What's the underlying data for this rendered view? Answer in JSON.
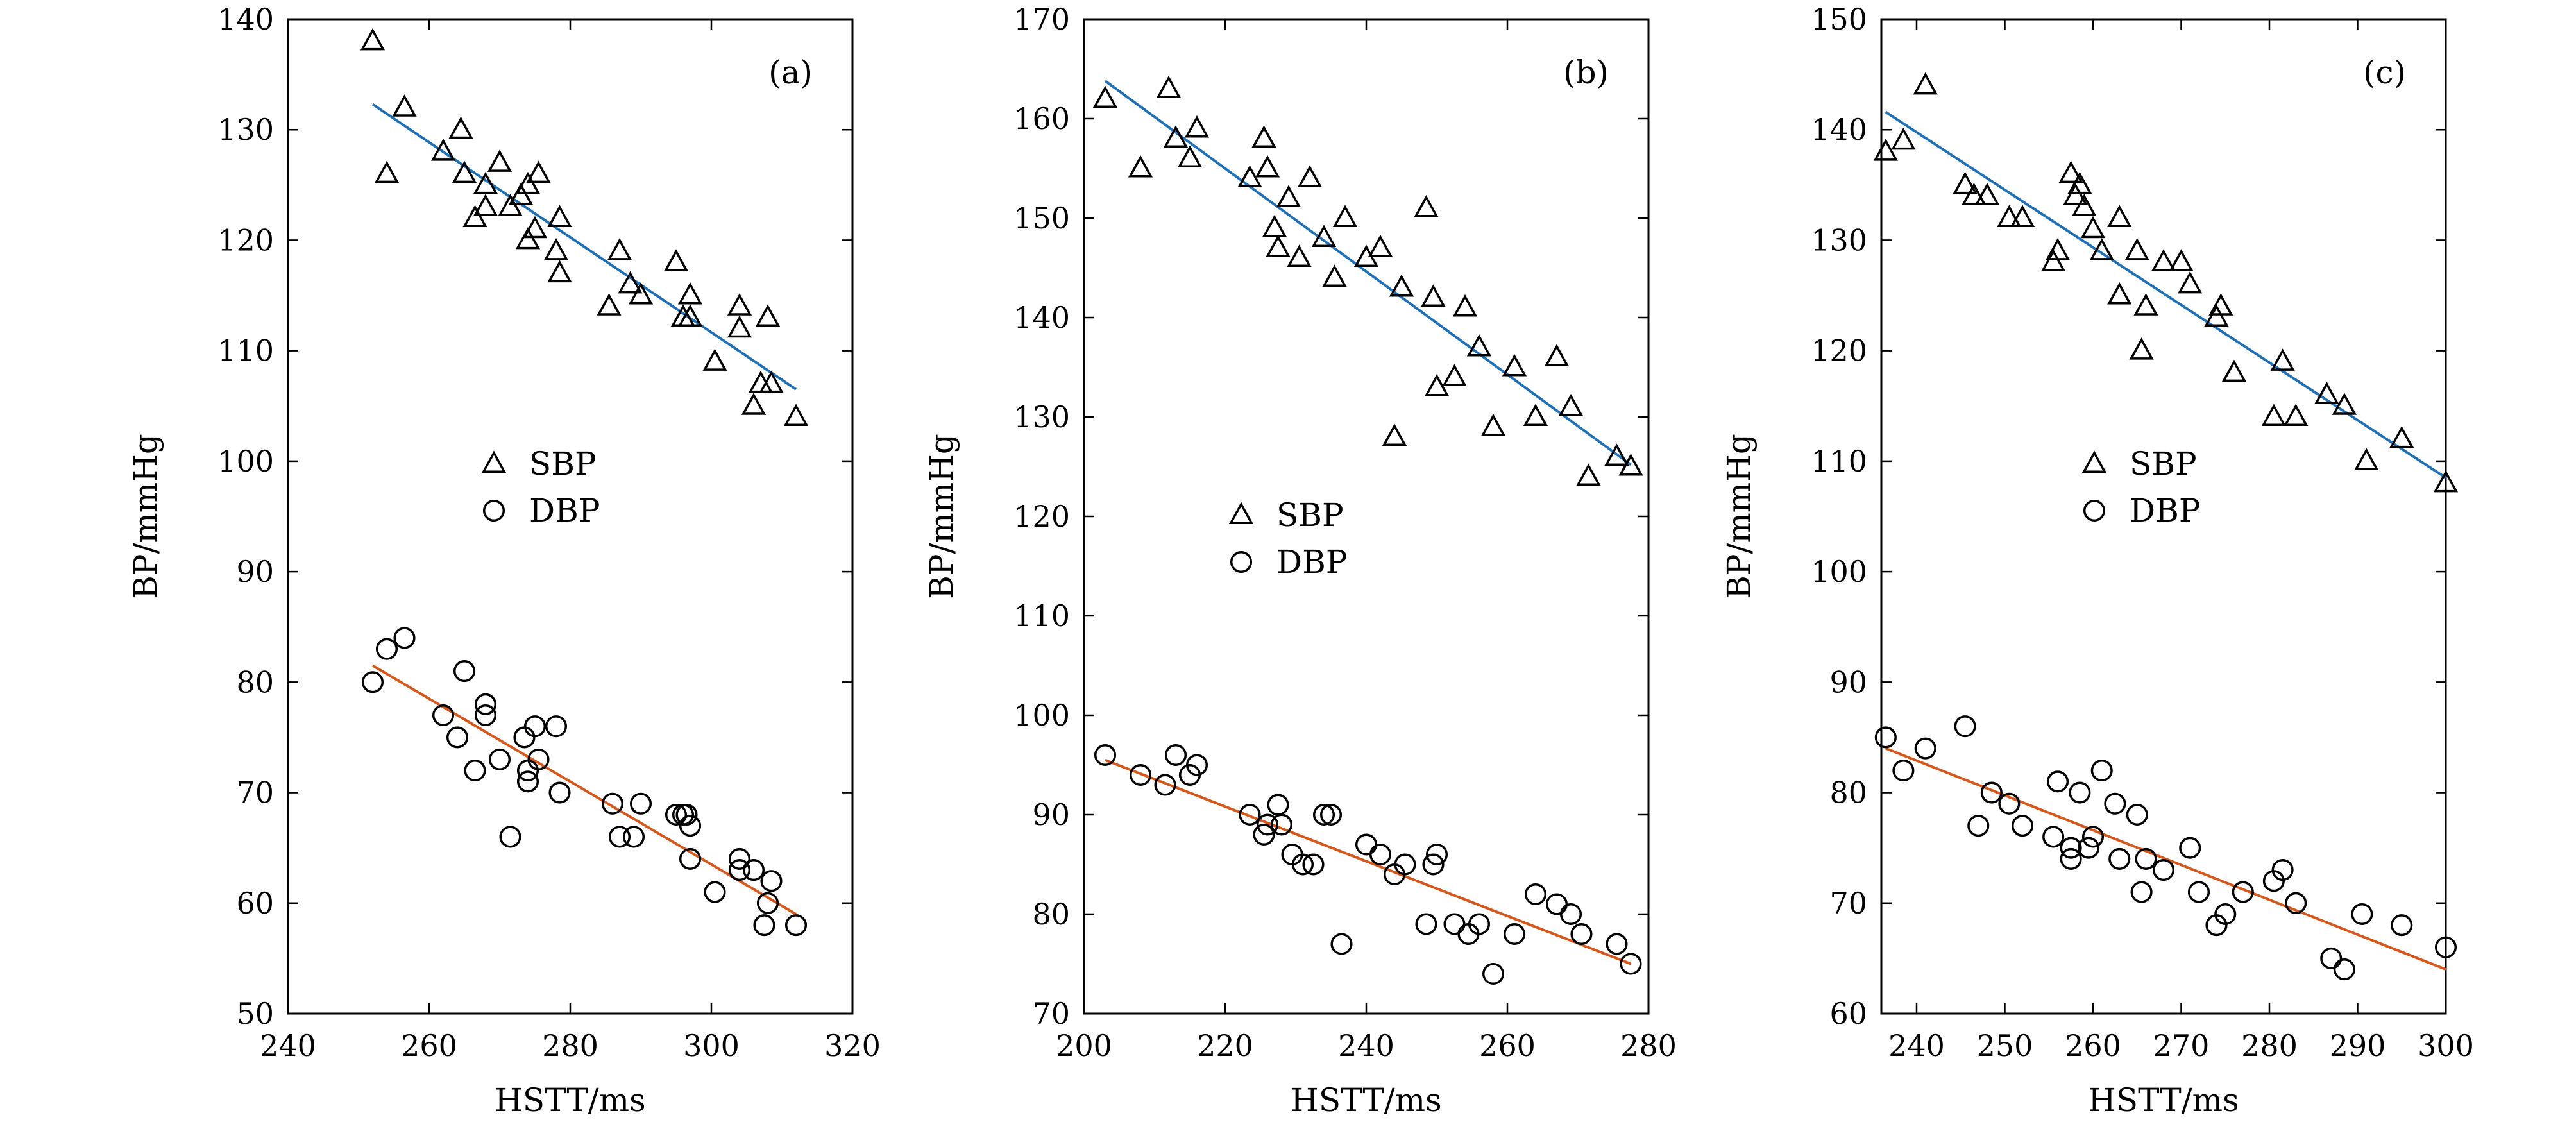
{
  "chart_data": [
    {
      "type": "scatter",
      "panel_label": "(a)",
      "xlabel": "HSTT/ms",
      "ylabel": "BP/mmHg",
      "xlim": [
        240,
        320
      ],
      "ylim": [
        50,
        140
      ],
      "xticks": [
        240,
        260,
        280,
        300,
        320
      ],
      "yticks": [
        50,
        60,
        70,
        80,
        90,
        100,
        110,
        120,
        130,
        140
      ],
      "legend": {
        "placement": "center"
      },
      "series": [
        {
          "name": "SBP",
          "marker": "triangle",
          "points": [
            [
              252,
              138
            ],
            [
              254,
              126
            ],
            [
              256.5,
              132
            ],
            [
              262,
              128
            ],
            [
              264.5,
              130
            ],
            [
              265,
              126
            ],
            [
              266.5,
              122
            ],
            [
              268,
              125
            ],
            [
              268,
              123
            ],
            [
              270,
              127
            ],
            [
              271.5,
              123
            ],
            [
              273,
              124
            ],
            [
              274,
              125
            ],
            [
              274,
              120
            ],
            [
              275,
              121
            ],
            [
              275.5,
              126
            ],
            [
              278,
              119
            ],
            [
              278.5,
              122
            ],
            [
              278.5,
              117
            ],
            [
              285.5,
              114
            ],
            [
              287,
              119
            ],
            [
              288.5,
              116
            ],
            [
              290,
              115
            ],
            [
              295,
              118
            ],
            [
              296,
              113
            ],
            [
              297,
              115
            ],
            [
              297,
              113
            ],
            [
              300.5,
              109
            ],
            [
              304,
              114
            ],
            [
              304,
              112
            ],
            [
              306,
              105
            ],
            [
              307,
              107
            ],
            [
              308,
              113
            ],
            [
              308.5,
              107
            ],
            [
              312,
              104
            ]
          ],
          "fit": {
            "x": [
              252,
              312
            ],
            "y": [
              132.3,
              106.5
            ]
          }
        },
        {
          "name": "DBP",
          "marker": "circle",
          "points": [
            [
              252,
              80
            ],
            [
              254,
              83
            ],
            [
              256.5,
              84
            ],
            [
              262,
              77
            ],
            [
              264,
              75
            ],
            [
              265,
              81
            ],
            [
              266.5,
              72
            ],
            [
              268,
              77
            ],
            [
              268,
              78
            ],
            [
              270,
              73
            ],
            [
              271.5,
              66
            ],
            [
              273.5,
              75
            ],
            [
              274,
              72
            ],
            [
              274,
              71
            ],
            [
              275,
              76
            ],
            [
              275.5,
              73
            ],
            [
              278,
              76
            ],
            [
              278.5,
              70
            ],
            [
              286,
              69
            ],
            [
              287,
              66
            ],
            [
              289,
              66
            ],
            [
              290,
              69
            ],
            [
              295,
              68
            ],
            [
              296,
              68
            ],
            [
              296.5,
              68
            ],
            [
              297,
              64
            ],
            [
              297,
              67
            ],
            [
              300.5,
              61
            ],
            [
              304,
              64
            ],
            [
              304,
              63
            ],
            [
              306,
              63
            ],
            [
              307.5,
              58
            ],
            [
              308,
              60
            ],
            [
              308.5,
              62
            ],
            [
              312,
              58
            ]
          ],
          "fit": {
            "x": [
              252,
              312
            ],
            "y": [
              81.5,
              59.0
            ]
          }
        }
      ]
    },
    {
      "type": "scatter",
      "panel_label": "(b)",
      "xlabel": "HSTT/ms",
      "ylabel": "BP/mmHg",
      "xlim": [
        200,
        280
      ],
      "ylim": [
        70,
        170
      ],
      "xticks": [
        200,
        220,
        240,
        260,
        280
      ],
      "yticks": [
        70,
        80,
        90,
        100,
        110,
        120,
        130,
        140,
        150,
        160,
        170
      ],
      "legend": {
        "placement": "center"
      },
      "series": [
        {
          "name": "SBP",
          "marker": "triangle",
          "points": [
            [
              203,
              162
            ],
            [
              208,
              155
            ],
            [
              212,
              163
            ],
            [
              213,
              158
            ],
            [
              215,
              156
            ],
            [
              216,
              159
            ],
            [
              223.5,
              154
            ],
            [
              225.5,
              158
            ],
            [
              226,
              155
            ],
            [
              227,
              149
            ],
            [
              227.5,
              147
            ],
            [
              229,
              152
            ],
            [
              230.5,
              146
            ],
            [
              232,
              154
            ],
            [
              234,
              148
            ],
            [
              235.5,
              144
            ],
            [
              237,
              150
            ],
            [
              240,
              146
            ],
            [
              242,
              147
            ],
            [
              244,
              128
            ],
            [
              245,
              143
            ],
            [
              248.5,
              151
            ],
            [
              249.5,
              142
            ],
            [
              250,
              133
            ],
            [
              252.5,
              134
            ],
            [
              254,
              141
            ],
            [
              256,
              137
            ],
            [
              258,
              129
            ],
            [
              261,
              135
            ],
            [
              264,
              130
            ],
            [
              267,
              136
            ],
            [
              269,
              131
            ],
            [
              271.5,
              124
            ],
            [
              275.5,
              126
            ],
            [
              277.5,
              125
            ]
          ],
          "fit": {
            "x": [
              203,
              277.5
            ],
            "y": [
              163.8,
              125.2
            ]
          }
        },
        {
          "name": "DBP",
          "marker": "circle",
          "points": [
            [
              203,
              96
            ],
            [
              208,
              94
            ],
            [
              211.5,
              93
            ],
            [
              213,
              96
            ],
            [
              215,
              94
            ],
            [
              216,
              95
            ],
            [
              223.5,
              90
            ],
            [
              225.5,
              88
            ],
            [
              226,
              89
            ],
            [
              227.5,
              91
            ],
            [
              228,
              89
            ],
            [
              229.5,
              86
            ],
            [
              231,
              85
            ],
            [
              232.5,
              85
            ],
            [
              234,
              90
            ],
            [
              235,
              90
            ],
            [
              236.5,
              77
            ],
            [
              240,
              87
            ],
            [
              242,
              86
            ],
            [
              244,
              84
            ],
            [
              245.5,
              85
            ],
            [
              248.5,
              79
            ],
            [
              249.5,
              85
            ],
            [
              250,
              86
            ],
            [
              252.5,
              79
            ],
            [
              254.5,
              78
            ],
            [
              256,
              79
            ],
            [
              258,
              74
            ],
            [
              261,
              78
            ],
            [
              264,
              82
            ],
            [
              267,
              81
            ],
            [
              269,
              80
            ],
            [
              270.5,
              78
            ],
            [
              275.5,
              77
            ],
            [
              277.5,
              75
            ]
          ],
          "fit": {
            "x": [
              203,
              277.5
            ],
            "y": [
              95.5,
              75.0
            ]
          }
        }
      ]
    },
    {
      "type": "scatter",
      "panel_label": "(c)",
      "xlabel": "HSTT/ms",
      "ylabel": "BP/mmHg",
      "xlim": [
        236,
        300
      ],
      "ylim": [
        60,
        150
      ],
      "xticks": [
        240,
        250,
        260,
        270,
        280,
        290,
        300
      ],
      "yticks": [
        60,
        70,
        80,
        90,
        100,
        110,
        120,
        130,
        140,
        150
      ],
      "legend": {
        "placement": "center"
      },
      "series": [
        {
          "name": "SBP",
          "marker": "triangle",
          "points": [
            [
              236.5,
              138
            ],
            [
              238.5,
              139
            ],
            [
              241,
              144
            ],
            [
              245.5,
              135
            ],
            [
              246.5,
              134
            ],
            [
              248,
              134
            ],
            [
              250.5,
              132
            ],
            [
              252,
              132
            ],
            [
              255.5,
              128
            ],
            [
              256,
              129
            ],
            [
              257.5,
              136
            ],
            [
              258,
              134
            ],
            [
              258.5,
              135
            ],
            [
              259,
              133
            ],
            [
              260,
              131
            ],
            [
              261,
              129
            ],
            [
              263,
              132
            ],
            [
              263,
              125
            ],
            [
              265,
              129
            ],
            [
              265.5,
              120
            ],
            [
              266,
              124
            ],
            [
              268,
              128
            ],
            [
              270,
              128
            ],
            [
              271,
              126
            ],
            [
              274,
              123
            ],
            [
              274.5,
              124
            ],
            [
              276,
              118
            ],
            [
              280.5,
              114
            ],
            [
              281.5,
              119
            ],
            [
              283,
              114
            ],
            [
              286.5,
              116
            ],
            [
              288.5,
              115
            ],
            [
              291,
              110
            ],
            [
              295,
              112
            ],
            [
              300,
              108
            ]
          ],
          "fit": {
            "x": [
              236.5,
              300
            ],
            "y": [
              141.6,
              108.5
            ]
          }
        },
        {
          "name": "DBP",
          "marker": "circle",
          "points": [
            [
              236.5,
              85
            ],
            [
              238.5,
              82
            ],
            [
              241,
              84
            ],
            [
              245.5,
              86
            ],
            [
              247,
              77
            ],
            [
              248.5,
              80
            ],
            [
              250.5,
              79
            ],
            [
              252,
              77
            ],
            [
              255.5,
              76
            ],
            [
              256,
              81
            ],
            [
              257.5,
              75
            ],
            [
              257.5,
              74
            ],
            [
              258.5,
              80
            ],
            [
              259.5,
              75
            ],
            [
              260,
              76
            ],
            [
              261,
              82
            ],
            [
              262.5,
              79
            ],
            [
              263,
              74
            ],
            [
              265,
              78
            ],
            [
              265.5,
              71
            ],
            [
              266,
              74
            ],
            [
              268,
              73
            ],
            [
              271,
              75
            ],
            [
              272,
              71
            ],
            [
              274,
              68
            ],
            [
              275,
              69
            ],
            [
              277,
              71
            ],
            [
              280.5,
              72
            ],
            [
              281.5,
              73
            ],
            [
              283,
              70
            ],
            [
              287,
              65
            ],
            [
              288.5,
              64
            ],
            [
              290.5,
              69
            ],
            [
              295,
              68
            ],
            [
              300,
              66
            ]
          ],
          "fit": {
            "x": [
              236.5,
              300
            ],
            "y": [
              84.0,
              64.0
            ]
          }
        }
      ]
    }
  ],
  "colors": {
    "sbp_fit": "#1f6fb4",
    "dbp_fit": "#d4571c",
    "axis": "#000000"
  }
}
